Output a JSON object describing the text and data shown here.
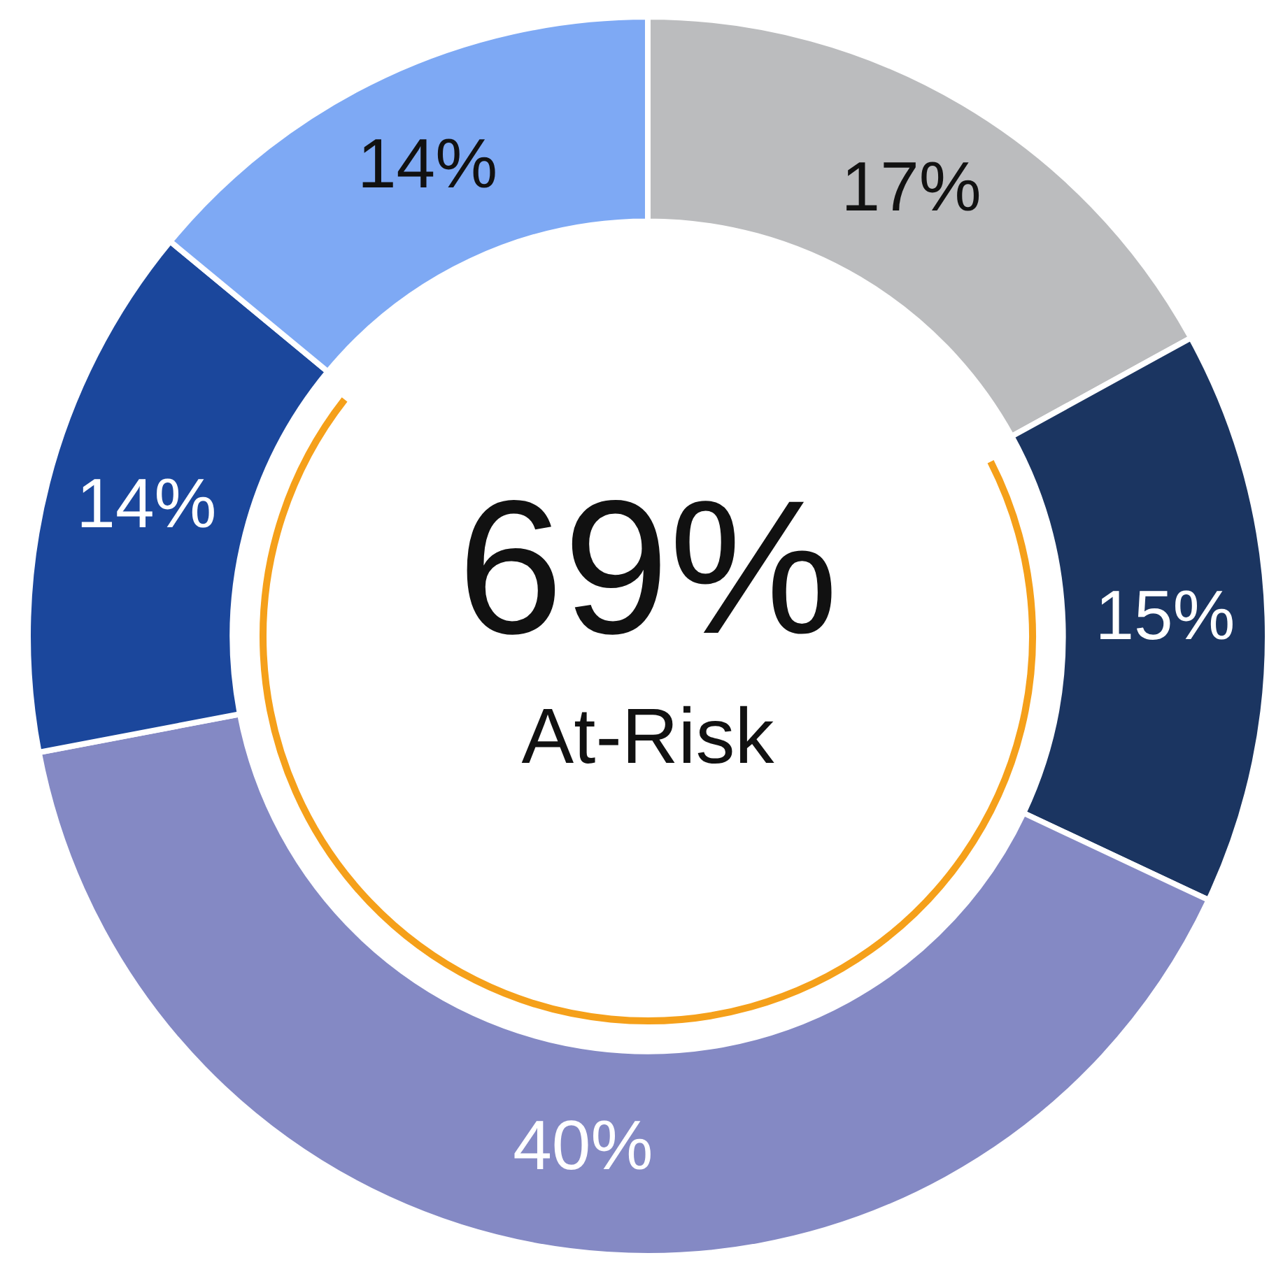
{
  "chart_data": {
    "type": "donut",
    "categories": [
      null,
      null,
      null,
      null,
      null
    ],
    "values": [
      17,
      15,
      40,
      14,
      14
    ],
    "colors": [
      "#bbbcbe",
      "#1b3561",
      "#8489c4",
      "#1b479c",
      "#7ea9f4"
    ],
    "value_labels": [
      "17%",
      "15%",
      "40%",
      "14%",
      "14%"
    ],
    "legend": false,
    "annotations": [
      "69%",
      "At-Risk"
    ]
  }
}
